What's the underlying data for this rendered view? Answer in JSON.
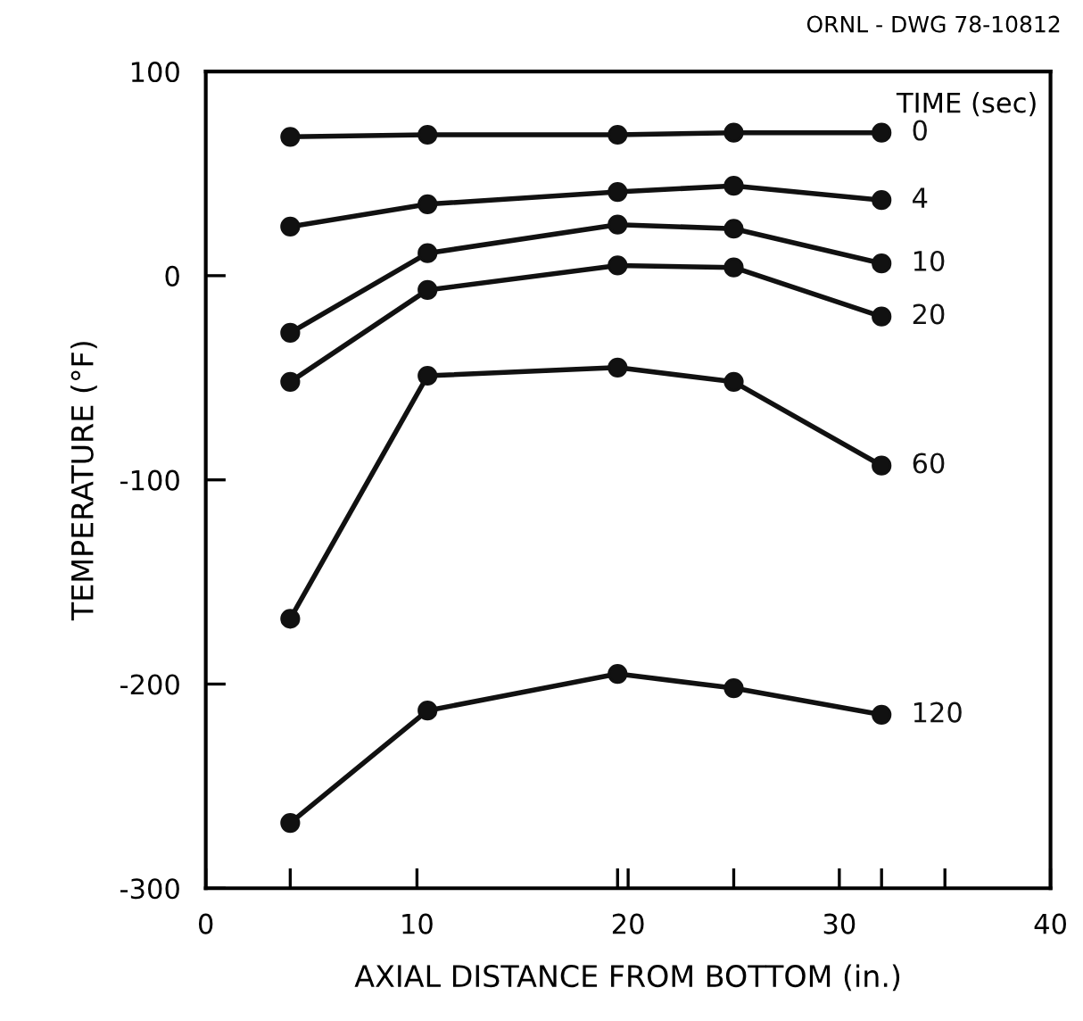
{
  "chart_data": {
    "type": "line",
    "xlabel": "AXIAL DISTANCE FROM BOTTOM (in.)",
    "ylabel": "TEMPERATURE (°F)",
    "legend_title": "TIME (sec)",
    "annotations": [
      "ORNL - DWG 78-10812"
    ],
    "x": [
      4,
      10.5,
      19.5,
      25,
      32
    ],
    "series": [
      {
        "name": "0",
        "color": "#111111",
        "values": [
          68,
          69,
          69,
          70,
          70
        ]
      },
      {
        "name": "4",
        "color": "#111111",
        "values": [
          24,
          35,
          41,
          44,
          37
        ]
      },
      {
        "name": "10",
        "color": "#111111",
        "values": [
          -28,
          11,
          25,
          23,
          6
        ]
      },
      {
        "name": "20",
        "color": "#111111",
        "values": [
          -52,
          -7,
          5,
          4,
          -20
        ]
      },
      {
        "name": "60",
        "color": "#111111",
        "values": [
          -168,
          -49,
          -45,
          -52,
          -93
        ]
      },
      {
        "name": "120",
        "color": "#111111",
        "values": [
          -268,
          -213,
          -195,
          -202,
          -215
        ]
      }
    ],
    "xlim": [
      0,
      40
    ],
    "ylim": [
      -300,
      100
    ],
    "xticks": [
      0,
      {
        "value": 4,
        "label": null
      },
      10,
      {
        "value": 19.5,
        "label": null
      },
      20,
      {
        "value": 25,
        "label": null
      },
      30,
      {
        "value": 32,
        "label": null
      },
      {
        "value": 35,
        "label": null
      },
      40
    ],
    "yticks": [
      -300,
      -200,
      -100,
      0,
      100
    ],
    "marker": "circle",
    "line_style": "solid",
    "grid": false,
    "legend": false
  }
}
